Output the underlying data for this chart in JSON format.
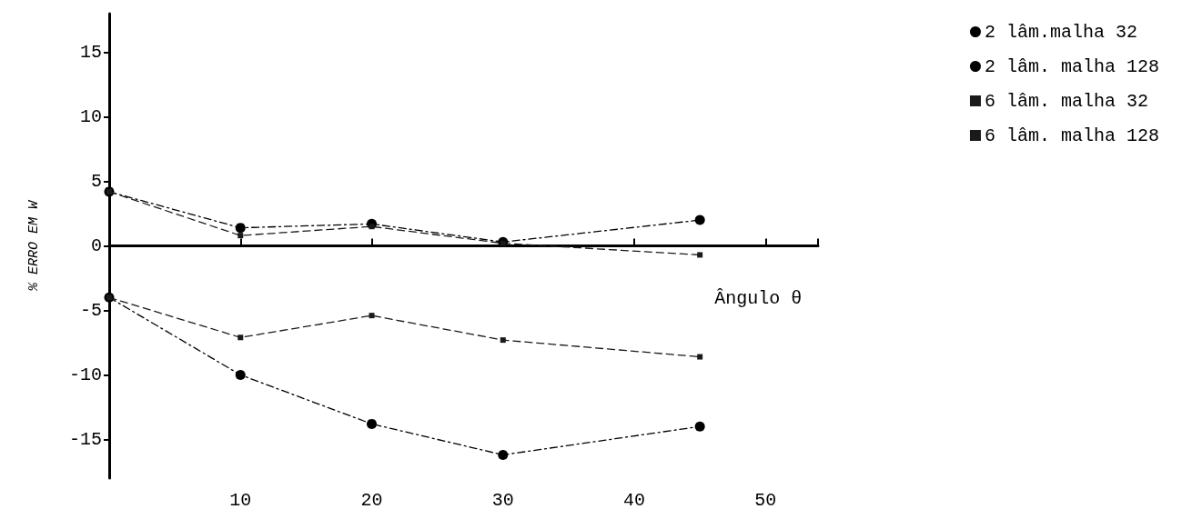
{
  "chart_data": {
    "type": "line",
    "xlabel": "Ângulo θ",
    "ylabel": "% ERRO EM W",
    "x": [
      0,
      10,
      20,
      30,
      45
    ],
    "xlim": [
      0,
      54
    ],
    "xticks": [
      10,
      20,
      30,
      40,
      50
    ],
    "ylim": [
      -18,
      18
    ],
    "yticks": [
      -15,
      -10,
      -5,
      0,
      5,
      10,
      15
    ],
    "legend": "top right",
    "series": [
      {
        "name": "2 lâm.malha 32",
        "color": "#000000",
        "marker": "circle",
        "line_style": "dashdot",
        "values": [
          -4,
          -10,
          -13.8,
          -16.2,
          -14
        ]
      },
      {
        "name": "2 lâm. malha 128",
        "color": "#000000",
        "marker": "circle",
        "line_style": "dashdot",
        "values": [
          4.2,
          1.4,
          1.7,
          0.3,
          2.0
        ]
      },
      {
        "name": "6 lâm. malha 32",
        "color": "#1a1a1a",
        "marker": "square",
        "line_style": "dashed",
        "values": [
          -4,
          -7.1,
          -5.4,
          -7.3,
          -8.6
        ]
      },
      {
        "name": "6 lâm. malha 128",
        "color": "#1a1a1a",
        "marker": "square",
        "line_style": "dashed",
        "values": [
          4.2,
          0.8,
          1.5,
          0.2,
          -0.7
        ]
      }
    ]
  }
}
